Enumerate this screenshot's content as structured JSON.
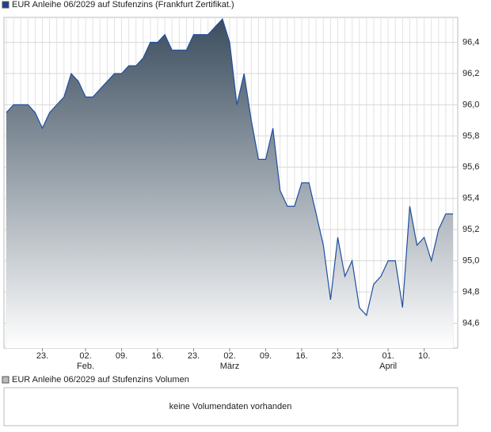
{
  "chart_data": [
    {
      "type": "area",
      "title": "EUR Anleihe 06/2029 auf Stufenzins (Frankfurt Zertifikat.)",
      "categories": [
        null,
        null,
        null,
        null,
        null,
        "23.",
        null,
        null,
        null,
        null,
        null,
        "02.",
        null,
        null,
        null,
        null,
        "09.",
        null,
        null,
        null,
        null,
        "16.",
        null,
        null,
        null,
        null,
        "23.",
        null,
        null,
        null,
        null,
        "02.",
        null,
        null,
        null,
        null,
        "09.",
        null,
        null,
        null,
        null,
        "16.",
        null,
        null,
        null,
        null,
        "23.",
        null,
        null,
        null,
        null,
        null,
        null,
        "01.",
        null,
        null,
        null,
        null,
        "10.",
        null,
        null,
        null,
        null
      ],
      "months": [
        null,
        null,
        null,
        null,
        null,
        null,
        null,
        null,
        null,
        null,
        null,
        "Feb.",
        null,
        null,
        null,
        null,
        null,
        null,
        null,
        null,
        null,
        null,
        null,
        null,
        null,
        null,
        null,
        null,
        null,
        null,
        null,
        "März",
        null,
        null,
        null,
        null,
        null,
        null,
        null,
        null,
        null,
        null,
        null,
        null,
        null,
        null,
        null,
        null,
        null,
        null,
        null,
        null,
        null,
        "April",
        null,
        null,
        null,
        null,
        null,
        null,
        null,
        null,
        null
      ],
      "values": [
        95.95,
        96.0,
        96.0,
        96.0,
        95.95,
        95.85,
        95.95,
        96.0,
        96.05,
        96.2,
        96.15,
        96.05,
        96.05,
        96.1,
        96.15,
        96.2,
        96.2,
        96.25,
        96.25,
        96.3,
        96.4,
        96.4,
        96.45,
        96.35,
        96.35,
        96.35,
        96.45,
        96.45,
        96.45,
        96.5,
        96.55,
        96.4,
        96.0,
        96.2,
        95.9,
        95.65,
        95.65,
        95.85,
        95.45,
        95.35,
        95.35,
        95.5,
        95.5,
        95.3,
        95.1,
        94.75,
        95.15,
        94.9,
        95.0,
        94.7,
        94.65,
        94.85,
        94.9,
        95.0,
        95.0,
        94.7,
        95.35,
        95.1,
        95.15,
        95.0,
        95.2,
        95.3,
        95.3
      ],
      "color": "#1f4fa0",
      "ylim": [
        94.44,
        96.56
      ],
      "yticks": [
        {
          "value": 94.6,
          "label": "94,6"
        },
        {
          "value": 94.8,
          "label": "94,8"
        },
        {
          "value": 95.0,
          "label": "95,0"
        },
        {
          "value": 95.2,
          "label": "95,2"
        },
        {
          "value": 95.4,
          "label": "95,4"
        },
        {
          "value": 95.6,
          "label": "95,6"
        },
        {
          "value": 95.8,
          "label": "95,8"
        },
        {
          "value": 96.0,
          "label": "96,0"
        },
        {
          "value": 96.2,
          "label": "96,2"
        },
        {
          "value": 96.4,
          "label": "96,4"
        }
      ],
      "grid": true
    },
    {
      "type": "volume",
      "title": "EUR Anleihe 06/2029 auf Stufenzins Volumen",
      "annotation": "keine Volumendaten vorhanden"
    }
  ]
}
